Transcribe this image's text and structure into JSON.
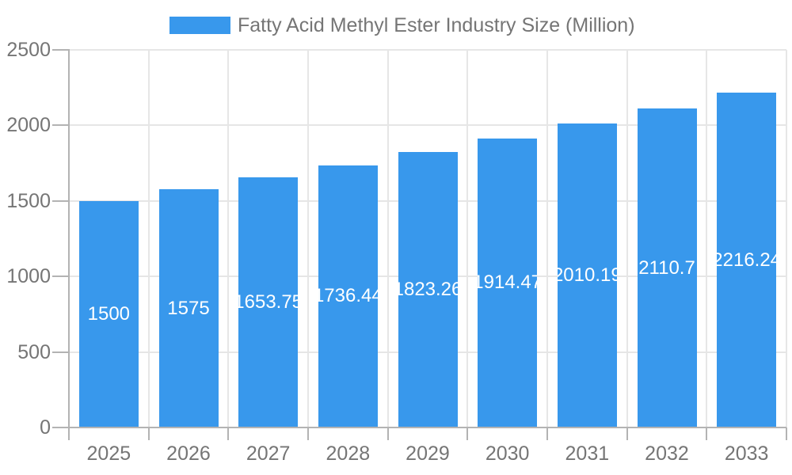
{
  "legend": {
    "label": "Fatty Acid Methyl Ester Industry Size (Million)"
  },
  "chart_data": {
    "type": "bar",
    "title": "Fatty Acid Methyl Ester Industry Size (Million)",
    "categories": [
      "2025",
      "2026",
      "2027",
      "2028",
      "2029",
      "2030",
      "2031",
      "2032",
      "2033"
    ],
    "values": [
      1500,
      1575,
      1653.75,
      1736.44,
      1823.26,
      1914.47,
      2010.19,
      2110.7,
      2216.24
    ],
    "value_labels": [
      "1500",
      "1575",
      "1653.75",
      "1736.44",
      "1823.26",
      "1914.47",
      "2010.19",
      "2110.7",
      "2216.24"
    ],
    "xlabel": "",
    "ylabel": "",
    "ylim": [
      0,
      2500
    ],
    "ytick_interval": 500,
    "ytick_labels": [
      "0",
      "500",
      "1000",
      "1500",
      "2000",
      "2500"
    ],
    "grid": true,
    "legend_position": "top",
    "colors": {
      "bar": "#3898EC",
      "axis_text": "#757575",
      "bar_label": "#FFFFFF",
      "gridline": "#E6E6E6",
      "axis_line": "#B3B3B3",
      "background": "#FFFFFF"
    }
  }
}
